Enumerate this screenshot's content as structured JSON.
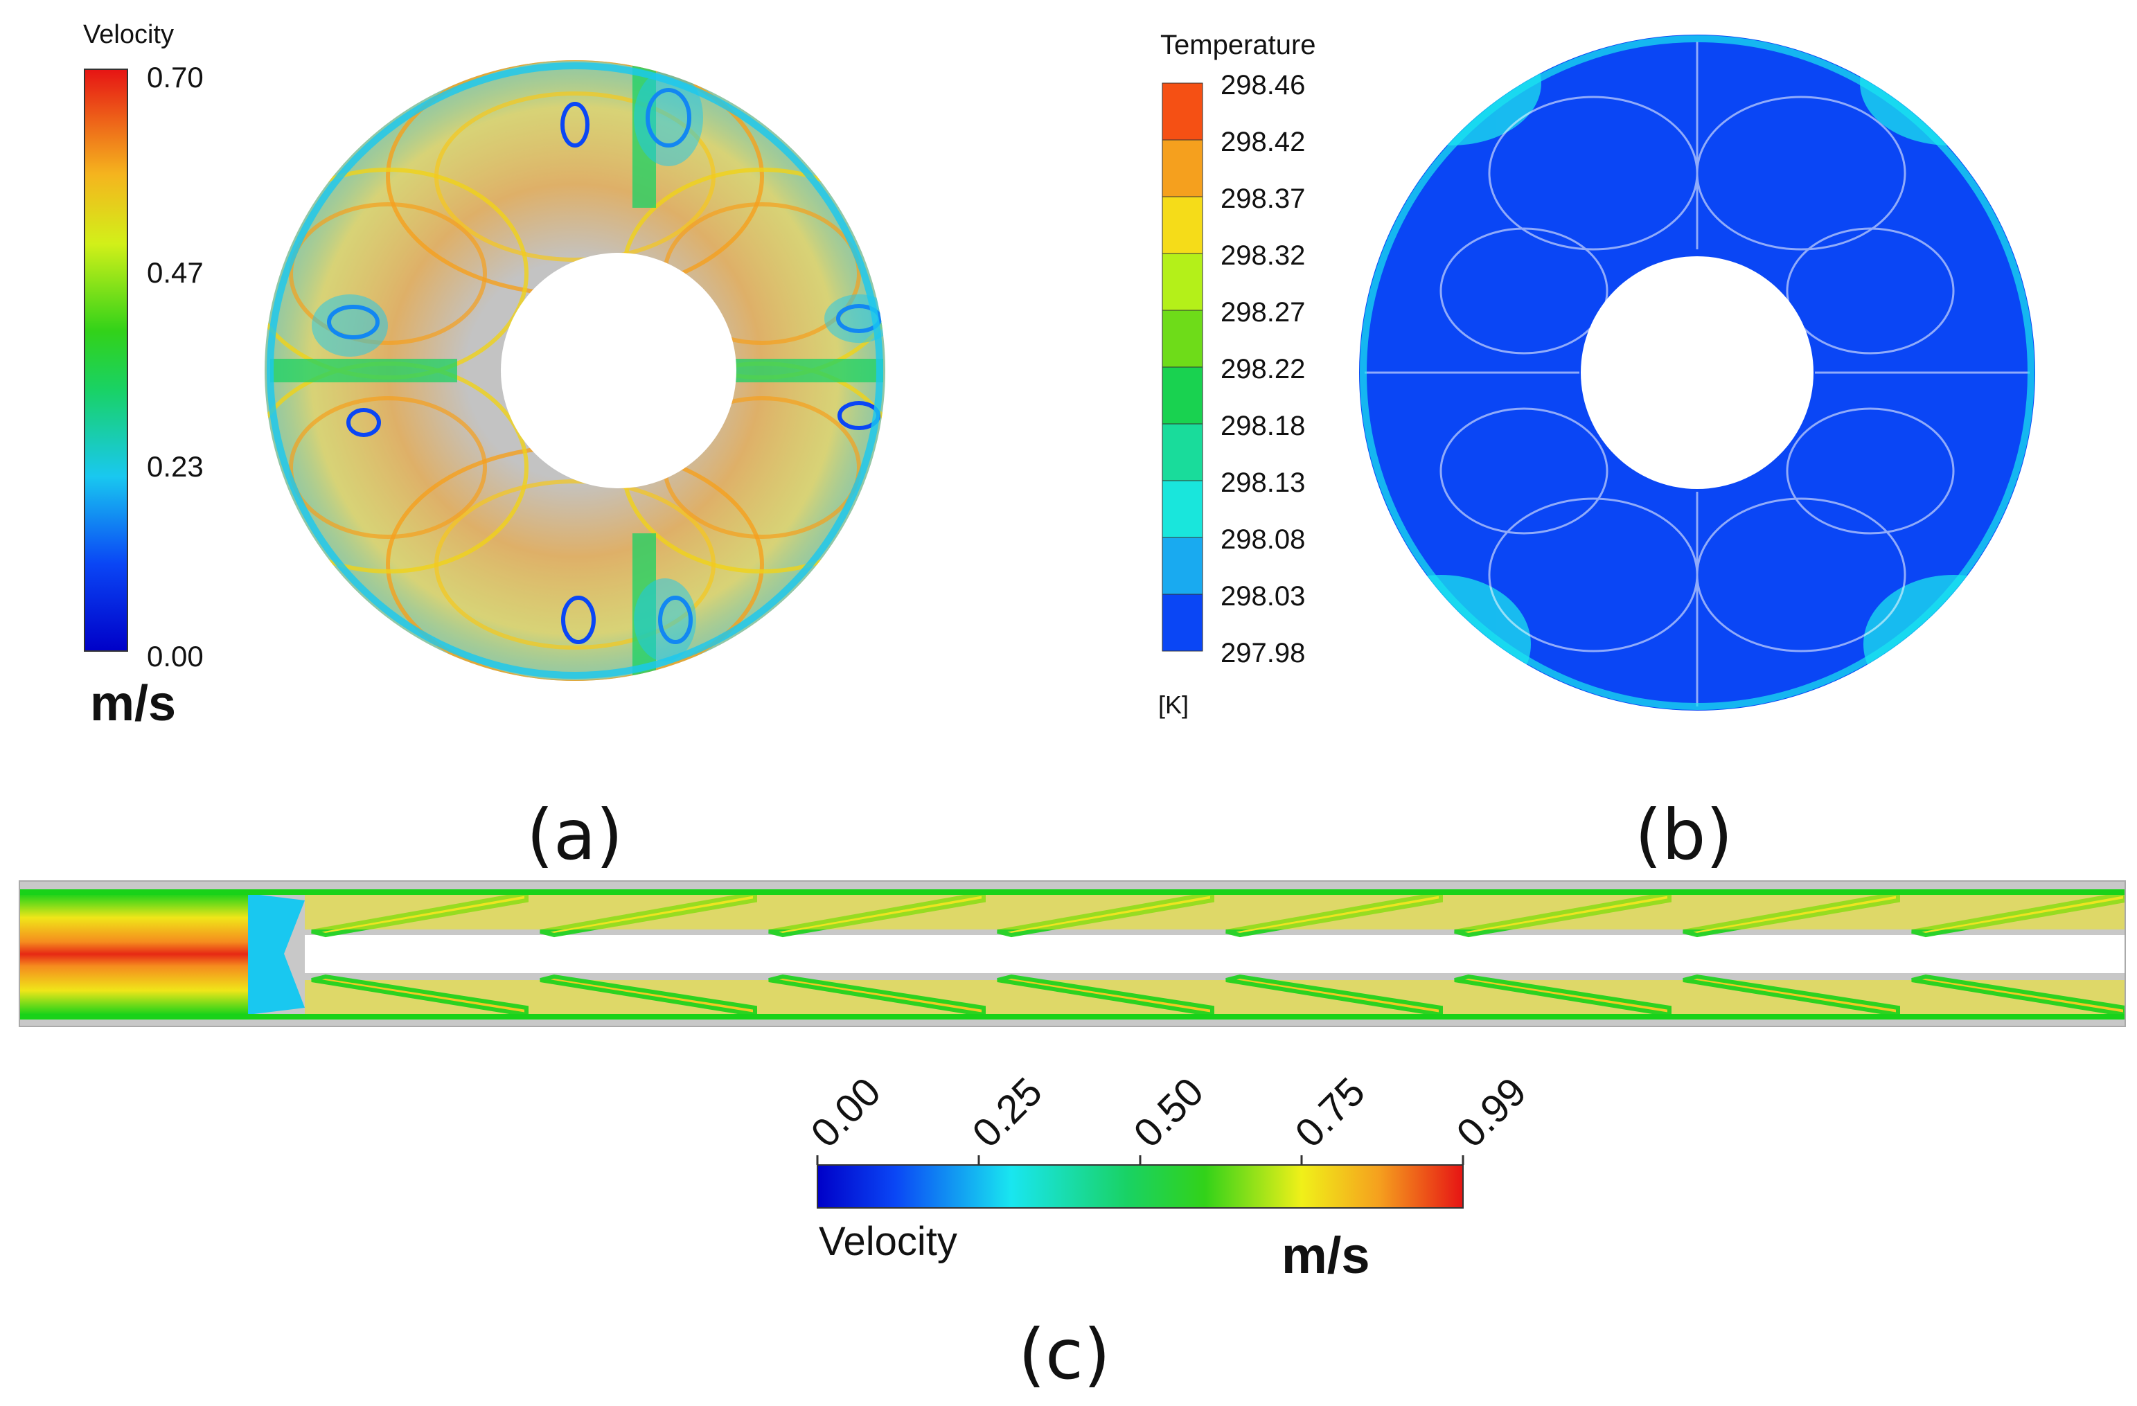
{
  "panels": {
    "a": {
      "label": "(a)",
      "legend": {
        "title": "Velocity",
        "ticks": [
          "0.70",
          "0.47",
          "0.23",
          "0.00"
        ],
        "unit": "m/s"
      }
    },
    "b": {
      "label": "(b)",
      "legend": {
        "title": "Temperature",
        "ticks": [
          "298.46",
          "298.42",
          "298.37",
          "298.32",
          "298.27",
          "298.22",
          "298.18",
          "298.13",
          "298.08",
          "298.03",
          "297.98"
        ],
        "unit": "[K]"
      }
    },
    "c": {
      "label": "(c)",
      "legend": {
        "title": "Velocity",
        "ticks": [
          "0.00",
          "0.25",
          "0.50",
          "0.75",
          "0.99"
        ],
        "unit": "m/s"
      }
    }
  },
  "colors": {
    "jet_blue": "#0a1ee6",
    "jet_cyan": "#19e6f0",
    "jet_green": "#19d219",
    "jet_yellow": "#f5f019",
    "jet_orange": "#f58c1e",
    "jet_red": "#e61414",
    "field_gray": "#c3c3c3",
    "temp_field_blue": "#0a46f5"
  }
}
